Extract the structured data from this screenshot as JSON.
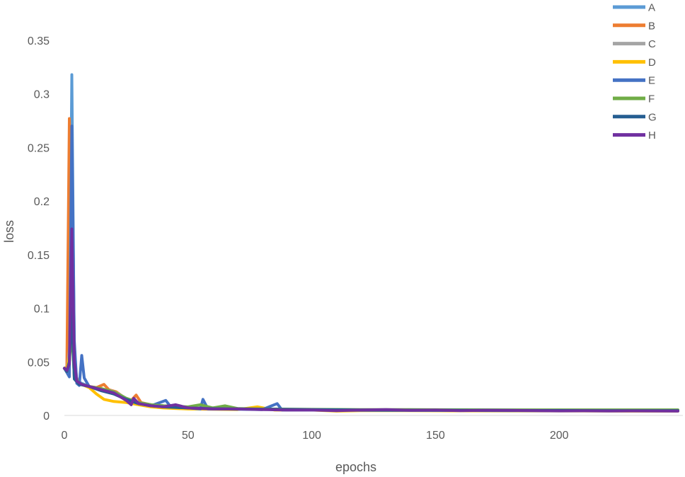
{
  "chart_data": {
    "type": "line",
    "title": "",
    "xlabel": "epochs",
    "ylabel": "loss",
    "xlim": [
      0,
      250
    ],
    "ylim": [
      0,
      0.35
    ],
    "x_ticks": [
      "0",
      "50",
      "100",
      "150",
      "200"
    ],
    "y_ticks": [
      "0",
      "0.05",
      "0.1",
      "0.15",
      "0.2",
      "0.25",
      "0.3",
      "0.35"
    ],
    "grid": false,
    "legend_position": "top-right",
    "series": [
      {
        "name": "A",
        "color": "#5b9bd5",
        "points": [
          [
            0,
            0.044
          ],
          [
            1,
            0.042
          ],
          [
            2,
            0.05
          ],
          [
            3,
            0.318
          ],
          [
            4,
            0.06
          ],
          [
            5,
            0.032
          ],
          [
            7,
            0.03
          ],
          [
            10,
            0.027
          ],
          [
            15,
            0.024
          ],
          [
            20,
            0.021
          ],
          [
            25,
            0.015
          ],
          [
            30,
            0.011
          ],
          [
            35,
            0.009
          ],
          [
            40,
            0.008
          ],
          [
            50,
            0.007
          ],
          [
            60,
            0.0065
          ],
          [
            70,
            0.006
          ],
          [
            80,
            0.0058
          ],
          [
            90,
            0.0055
          ],
          [
            100,
            0.0053
          ],
          [
            120,
            0.005
          ],
          [
            140,
            0.0048
          ],
          [
            160,
            0.0047
          ],
          [
            180,
            0.0046
          ],
          [
            200,
            0.0045
          ],
          [
            220,
            0.0044
          ],
          [
            248,
            0.0043
          ]
        ]
      },
      {
        "name": "B",
        "color": "#ed7d31",
        "points": [
          [
            0,
            0.044
          ],
          [
            1,
            0.045
          ],
          [
            2,
            0.277
          ],
          [
            3,
            0.09
          ],
          [
            4,
            0.035
          ],
          [
            6,
            0.03
          ],
          [
            8,
            0.028
          ],
          [
            10,
            0.027
          ],
          [
            13,
            0.026
          ],
          [
            16,
            0.029
          ],
          [
            18,
            0.024
          ],
          [
            21,
            0.022
          ],
          [
            24,
            0.017
          ],
          [
            27,
            0.014
          ],
          [
            29,
            0.019
          ],
          [
            31,
            0.012
          ],
          [
            35,
            0.01
          ],
          [
            40,
            0.009
          ],
          [
            45,
            0.008
          ],
          [
            50,
            0.007
          ],
          [
            60,
            0.0065
          ],
          [
            70,
            0.006
          ],
          [
            80,
            0.006
          ],
          [
            90,
            0.0057
          ],
          [
            100,
            0.0055
          ],
          [
            120,
            0.0052
          ],
          [
            140,
            0.005
          ],
          [
            160,
            0.0048
          ],
          [
            180,
            0.0047
          ],
          [
            200,
            0.0046
          ],
          [
            220,
            0.0045
          ],
          [
            248,
            0.0044
          ]
        ]
      },
      {
        "name": "C",
        "color": "#a5a5a5",
        "points": [
          [
            0,
            0.044
          ],
          [
            1,
            0.041
          ],
          [
            2,
            0.06
          ],
          [
            3,
            0.12
          ],
          [
            4,
            0.04
          ],
          [
            6,
            0.03
          ],
          [
            10,
            0.027
          ],
          [
            15,
            0.024
          ],
          [
            19,
            0.023
          ],
          [
            22,
            0.02
          ],
          [
            25,
            0.016
          ],
          [
            30,
            0.012
          ],
          [
            35,
            0.01
          ],
          [
            40,
            0.009
          ],
          [
            50,
            0.0075
          ],
          [
            60,
            0.007
          ],
          [
            70,
            0.0065
          ],
          [
            80,
            0.006
          ],
          [
            100,
            0.0056
          ],
          [
            120,
            0.0053
          ],
          [
            140,
            0.005
          ],
          [
            160,
            0.0049
          ],
          [
            180,
            0.0048
          ],
          [
            200,
            0.0047
          ],
          [
            220,
            0.0046
          ],
          [
            248,
            0.0045
          ]
        ]
      },
      {
        "name": "D",
        "color": "#ffc000",
        "points": [
          [
            0,
            0.044
          ],
          [
            1,
            0.042
          ],
          [
            2,
            0.055
          ],
          [
            3,
            0.1
          ],
          [
            4,
            0.038
          ],
          [
            6,
            0.03
          ],
          [
            10,
            0.026
          ],
          [
            13,
            0.02
          ],
          [
            16,
            0.015
          ],
          [
            20,
            0.013
          ],
          [
            25,
            0.012
          ],
          [
            30,
            0.01
          ],
          [
            35,
            0.008
          ],
          [
            40,
            0.007
          ],
          [
            50,
            0.006
          ],
          [
            60,
            0.0058
          ],
          [
            70,
            0.0055
          ],
          [
            78,
            0.008
          ],
          [
            85,
            0.005
          ],
          [
            100,
            0.005
          ],
          [
            110,
            0.004
          ],
          [
            120,
            0.0045
          ],
          [
            140,
            0.0044
          ],
          [
            160,
            0.0043
          ],
          [
            180,
            0.0042
          ],
          [
            200,
            0.0042
          ],
          [
            220,
            0.0041
          ],
          [
            248,
            0.004
          ]
        ]
      },
      {
        "name": "E",
        "color": "#4472c4",
        "points": [
          [
            0,
            0.044
          ],
          [
            1,
            0.04
          ],
          [
            2,
            0.036
          ],
          [
            3,
            0.27
          ],
          [
            4,
            0.07
          ],
          [
            5,
            0.03
          ],
          [
            6,
            0.028
          ],
          [
            7,
            0.056
          ],
          [
            8,
            0.035
          ],
          [
            10,
            0.027
          ],
          [
            15,
            0.024
          ],
          [
            20,
            0.02
          ],
          [
            25,
            0.015
          ],
          [
            30,
            0.011
          ],
          [
            35,
            0.009
          ],
          [
            41,
            0.014
          ],
          [
            43,
            0.008
          ],
          [
            50,
            0.007
          ],
          [
            55,
            0.006
          ],
          [
            56,
            0.015
          ],
          [
            58,
            0.006
          ],
          [
            65,
            0.006
          ],
          [
            70,
            0.0058
          ],
          [
            80,
            0.0055
          ],
          [
            86,
            0.011
          ],
          [
            88,
            0.005
          ],
          [
            100,
            0.005
          ],
          [
            120,
            0.0048
          ],
          [
            140,
            0.0047
          ],
          [
            160,
            0.0046
          ],
          [
            180,
            0.0045
          ],
          [
            200,
            0.0044
          ],
          [
            220,
            0.0043
          ],
          [
            248,
            0.0043
          ]
        ]
      },
      {
        "name": "F",
        "color": "#70ad47",
        "points": [
          [
            0,
            0.044
          ],
          [
            1,
            0.041
          ],
          [
            2,
            0.05
          ],
          [
            3,
            0.08
          ],
          [
            4,
            0.036
          ],
          [
            6,
            0.03
          ],
          [
            10,
            0.027
          ],
          [
            15,
            0.025
          ],
          [
            20,
            0.022
          ],
          [
            25,
            0.016
          ],
          [
            30,
            0.012
          ],
          [
            35,
            0.01
          ],
          [
            40,
            0.009
          ],
          [
            50,
            0.008
          ],
          [
            55,
            0.01
          ],
          [
            60,
            0.007
          ],
          [
            65,
            0.009
          ],
          [
            70,
            0.0065
          ],
          [
            80,
            0.006
          ],
          [
            100,
            0.0057
          ],
          [
            120,
            0.0055
          ],
          [
            140,
            0.0054
          ],
          [
            160,
            0.0053
          ],
          [
            180,
            0.0052
          ],
          [
            200,
            0.0052
          ],
          [
            220,
            0.0052
          ],
          [
            248,
            0.0052
          ]
        ]
      },
      {
        "name": "G",
        "color": "#255e91",
        "points": [
          [
            0,
            0.044
          ],
          [
            1,
            0.041
          ],
          [
            2,
            0.05
          ],
          [
            3,
            0.1
          ],
          [
            4,
            0.034
          ],
          [
            6,
            0.029
          ],
          [
            10,
            0.027
          ],
          [
            15,
            0.023
          ],
          [
            20,
            0.02
          ],
          [
            25,
            0.015
          ],
          [
            30,
            0.011
          ],
          [
            35,
            0.009
          ],
          [
            40,
            0.008
          ],
          [
            50,
            0.007
          ],
          [
            60,
            0.0063
          ],
          [
            70,
            0.006
          ],
          [
            80,
            0.0058
          ],
          [
            100,
            0.0054
          ],
          [
            120,
            0.0051
          ],
          [
            140,
            0.0049
          ],
          [
            160,
            0.0048
          ],
          [
            180,
            0.0047
          ],
          [
            200,
            0.0046
          ],
          [
            220,
            0.0045
          ],
          [
            248,
            0.0044
          ]
        ]
      },
      {
        "name": "H",
        "color": "#7030a0",
        "points": [
          [
            0,
            0.044
          ],
          [
            1,
            0.042
          ],
          [
            2,
            0.048
          ],
          [
            3,
            0.174
          ],
          [
            4,
            0.05
          ],
          [
            5,
            0.032
          ],
          [
            7,
            0.029
          ],
          [
            10,
            0.027
          ],
          [
            15,
            0.024
          ],
          [
            20,
            0.021
          ],
          [
            25,
            0.014
          ],
          [
            27,
            0.01
          ],
          [
            28,
            0.016
          ],
          [
            30,
            0.011
          ],
          [
            35,
            0.009
          ],
          [
            40,
            0.008
          ],
          [
            45,
            0.01
          ],
          [
            50,
            0.007
          ],
          [
            60,
            0.006
          ],
          [
            70,
            0.006
          ],
          [
            80,
            0.0055
          ],
          [
            90,
            0.005
          ],
          [
            100,
            0.005
          ],
          [
            110,
            0.0045
          ],
          [
            120,
            0.005
          ],
          [
            130,
            0.0055
          ],
          [
            140,
            0.0048
          ],
          [
            150,
            0.005
          ],
          [
            160,
            0.0045
          ],
          [
            170,
            0.0048
          ],
          [
            180,
            0.0047
          ],
          [
            190,
            0.0044
          ],
          [
            200,
            0.0042
          ],
          [
            210,
            0.0043
          ],
          [
            220,
            0.0041
          ],
          [
            230,
            0.0042
          ],
          [
            248,
            0.004
          ]
        ]
      }
    ]
  }
}
